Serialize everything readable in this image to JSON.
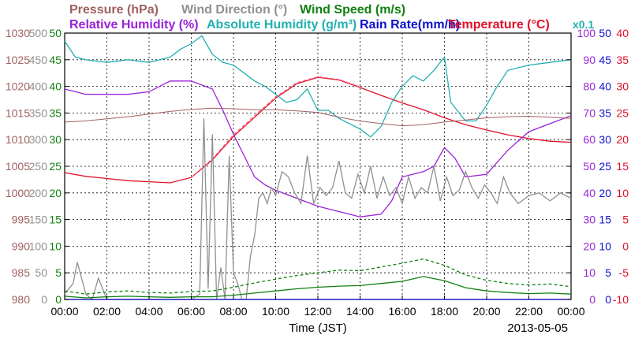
{
  "chart_data": {
    "type": "line",
    "date_label": "2013-05-05",
    "xlabel": "Time (JST)",
    "x_ticks": [
      "00:00",
      "02:00",
      "04:00",
      "06:00",
      "08:00",
      "10:00",
      "12:00",
      "14:00",
      "16:00",
      "18:00",
      "20:00",
      "22:00",
      "00:00"
    ],
    "xlim": [
      0,
      24
    ],
    "legend": [
      {
        "name": "Pressure (hPa)",
        "color": "#a06060"
      },
      {
        "name": "Wind Direction (°)",
        "color": "#909090"
      },
      {
        "name": "Wind Speed (m/s)",
        "color": "#108010"
      },
      {
        "name": "Relative Humidity (%)",
        "color": "#9a22d8"
      },
      {
        "name": "Absolute Humidity (g/m³)",
        "color": "#22b0b0"
      },
      {
        "name": "Rain Rate(mm/h)",
        "color": "#1010d0"
      },
      {
        "name": "Temperature (°C)",
        "color": "#e0102a"
      }
    ],
    "abs_humidity_scale_note": "x0.1",
    "axes": [
      {
        "name": "Pressure (hPa)",
        "color": "#a06060",
        "ylim": [
          980,
          1030
        ],
        "ticks": [
          "1030",
          "1025",
          "1020",
          "1015",
          "1010",
          "1005",
          "1000",
          "995",
          "990",
          "985",
          "980"
        ]
      },
      {
        "name": "Wind Direction (°)",
        "color": "#909090",
        "ylim": [
          0,
          500
        ],
        "ticks": [
          "500",
          "450",
          "400",
          "350",
          "300",
          "250",
          "200",
          "150",
          "100",
          "50",
          "0"
        ]
      },
      {
        "name": "Wind Speed (m/s)",
        "color": "#108010",
        "ylim": [
          0,
          50
        ],
        "ticks": [
          "50",
          "45",
          "40",
          "35",
          "30",
          "25",
          "20",
          "15",
          "10",
          "5",
          "0"
        ]
      },
      {
        "name": "Relative Humidity (%)",
        "color": "#9a22d8",
        "ylim": [
          0,
          100
        ],
        "ticks": [
          "100",
          "90",
          "80",
          "70",
          "60",
          "50",
          "40",
          "30",
          "20",
          "10",
          "0"
        ]
      },
      {
        "name": "Rain Rate(mm/h)",
        "color": "#1010d0",
        "ylim": [
          0,
          50
        ],
        "ticks": [
          "50",
          "45",
          "40",
          "35",
          "30",
          "25",
          "20",
          "15",
          "10",
          "5",
          "0"
        ]
      },
      {
        "name": "Temperature (°C)",
        "color": "#e0102a",
        "ylim": [
          -10,
          40
        ],
        "ticks": [
          "40",
          "35",
          "30",
          "25",
          "20",
          "15",
          "10",
          "5",
          "0",
          "-5",
          "-10"
        ]
      }
    ],
    "series": [
      {
        "name": "Temperature (°C)",
        "color": "#e0102a",
        "axis": 5,
        "x": [
          0,
          1,
          2,
          3,
          4,
          5,
          6,
          7,
          8,
          9,
          10,
          11,
          12,
          13,
          14,
          15,
          16,
          17,
          18,
          19,
          20,
          21,
          22,
          23,
          24
        ],
        "y": [
          13.8,
          13.1,
          12.7,
          12.3,
          12.1,
          11.9,
          12.9,
          16.2,
          20.6,
          24.2,
          27.8,
          30.5,
          31.7,
          31.2,
          29.8,
          28.3,
          26.9,
          25.6,
          24.1,
          22.8,
          21.8,
          20.9,
          20.2,
          19.7,
          19.5
        ]
      },
      {
        "name": "Temperature (°C) dewpoint-style dashed",
        "color": "#ff6080",
        "axis": 5,
        "dashed": true,
        "x": [
          6,
          7,
          8,
          9,
          10,
          11,
          12,
          13,
          14
        ],
        "y": [
          12.9,
          16.4,
          20.9,
          24.5,
          28.0,
          30.7,
          31.8,
          31.3,
          29.9
        ]
      },
      {
        "name": "Relative Humidity (%)",
        "color": "#9a22d8",
        "axis": 3,
        "x": [
          0,
          1,
          2,
          3,
          4,
          5,
          6,
          7,
          7.5,
          8,
          8.5,
          9,
          9.5,
          10,
          11,
          12,
          13,
          14,
          15,
          15.5,
          16,
          17,
          17.5,
          18,
          18.5,
          19,
          20,
          21,
          22,
          23,
          24
        ],
        "y": [
          79,
          77,
          77,
          77,
          78,
          82,
          82,
          79,
          71,
          62,
          54,
          46,
          43,
          41,
          38,
          35,
          33,
          31,
          32,
          37,
          46,
          48,
          50,
          57,
          53,
          46,
          47,
          56,
          63,
          66,
          69
        ]
      },
      {
        "name": "Absolute Humidity (g/m³)",
        "color": "#22b0b0",
        "axis": 3,
        "x": [
          0,
          0.5,
          1,
          2,
          3,
          4,
          5,
          5.5,
          6,
          6.5,
          7,
          7.5,
          8,
          8.5,
          9,
          9.5,
          10,
          10.5,
          11,
          11.5,
          12,
          12.5,
          13,
          13.5,
          14,
          14.5,
          15,
          15.5,
          16,
          16.5,
          17,
          17.5,
          18,
          18.3,
          18.6,
          19,
          19.5,
          20,
          20.5,
          21,
          22,
          23,
          24
        ],
        "y": [
          97,
          91,
          90,
          89,
          90,
          89,
          91,
          94,
          96,
          99,
          92,
          89,
          88,
          85,
          82,
          80,
          77,
          74,
          75,
          79,
          71,
          71,
          68,
          66,
          64,
          61,
          65,
          74,
          80,
          84,
          82,
          86,
          91,
          74,
          71,
          67,
          67,
          73,
          80,
          86,
          88,
          89,
          90
        ]
      },
      {
        "name": "Pressure (hPa)",
        "color": "#a06060",
        "axis": 0,
        "x": [
          0,
          1,
          2,
          3,
          4,
          5,
          6,
          7,
          8,
          9,
          10,
          11,
          12,
          13,
          14,
          15,
          16,
          17,
          18,
          19,
          20,
          21,
          22,
          23,
          24
        ],
        "y": [
          1013.3,
          1013.5,
          1013.9,
          1014.3,
          1014.8,
          1015.3,
          1015.7,
          1015.9,
          1015.8,
          1015.6,
          1015.6,
          1015.4,
          1015.1,
          1014.2,
          1013.5,
          1013.0,
          1012.6,
          1012.8,
          1013.3,
          1013.7,
          1014.1,
          1014.3,
          1014.4,
          1014.2,
          1014.0
        ]
      },
      {
        "name": "Wind Direction (°)",
        "color": "#909090",
        "axis": 1,
        "x": [
          0,
          0.4,
          0.6,
          1,
          1.3,
          1.6,
          2,
          3,
          4,
          5,
          6,
          6.4,
          6.6,
          6.8,
          7,
          7.2,
          7.4,
          7.6,
          7.8,
          8,
          8.2,
          8.4,
          8.6,
          8.8,
          9,
          9.2,
          9.4,
          9.6,
          9.8,
          10,
          10.3,
          10.6,
          10.9,
          11.2,
          11.5,
          11.8,
          12.1,
          12.4,
          12.7,
          13,
          13.3,
          13.6,
          13.9,
          14.2,
          14.5,
          14.8,
          15.1,
          15.4,
          15.7,
          16,
          16.3,
          16.6,
          16.9,
          17.2,
          17.5,
          17.8,
          18.1,
          18.4,
          18.7,
          19,
          19.3,
          19.6,
          19.9,
          20.2,
          20.5,
          20.8,
          21.1,
          21.5,
          22,
          22.5,
          23,
          23.5,
          24
        ],
        "y": [
          10,
          30,
          70,
          10,
          0,
          40,
          0,
          0,
          0,
          0,
          0,
          10,
          340,
          20,
          310,
          0,
          60,
          0,
          270,
          50,
          30,
          0,
          0,
          80,
          120,
          190,
          200,
          180,
          210,
          195,
          240,
          230,
          200,
          180,
          270,
          180,
          210,
          195,
          210,
          260,
          200,
          190,
          235,
          200,
          250,
          190,
          230,
          195,
          210,
          180,
          230,
          190,
          210,
          200,
          250,
          185,
          230,
          195,
          205,
          240,
          210,
          190,
          215,
          200,
          180,
          230,
          200,
          180,
          195,
          200,
          185,
          200,
          190
        ]
      },
      {
        "name": "Wind Speed (m/s)",
        "color": "#108010",
        "axis": 2,
        "x": [
          0,
          1,
          2,
          3,
          4,
          5,
          6,
          7,
          8,
          9,
          10,
          11,
          12,
          13,
          14,
          15,
          16,
          17,
          18,
          19,
          20,
          21,
          22,
          23,
          24
        ],
        "y": [
          0.6,
          0.3,
          0.5,
          0.6,
          0.5,
          0.4,
          0.5,
          0.5,
          0.8,
          1.2,
          1.6,
          2.0,
          2.3,
          2.5,
          2.6,
          3.0,
          3.4,
          4.3,
          3.5,
          2.2,
          1.6,
          1.3,
          1.1,
          1.2,
          1.0
        ]
      },
      {
        "name": "Wind Speed (m/s) gust",
        "color": "#108010",
        "axis": 2,
        "dashed": true,
        "x": [
          0,
          1,
          2,
          3,
          4,
          5,
          6,
          7,
          8,
          9,
          10,
          11,
          12,
          13,
          14,
          15,
          16,
          17,
          18,
          19,
          20,
          21,
          22,
          23,
          24
        ],
        "y": [
          1.6,
          1.0,
          1.4,
          1.6,
          1.3,
          1.2,
          1.5,
          1.6,
          2.3,
          3.1,
          3.8,
          4.5,
          5.0,
          5.5,
          5.4,
          6.1,
          6.8,
          7.6,
          6.4,
          4.6,
          3.6,
          3.0,
          2.7,
          2.9,
          2.4
        ]
      },
      {
        "name": "Rain Rate(mm/h)",
        "color": "#1010d0",
        "axis": 4,
        "x": [
          0,
          24
        ],
        "y": [
          0,
          0
        ]
      }
    ]
  }
}
